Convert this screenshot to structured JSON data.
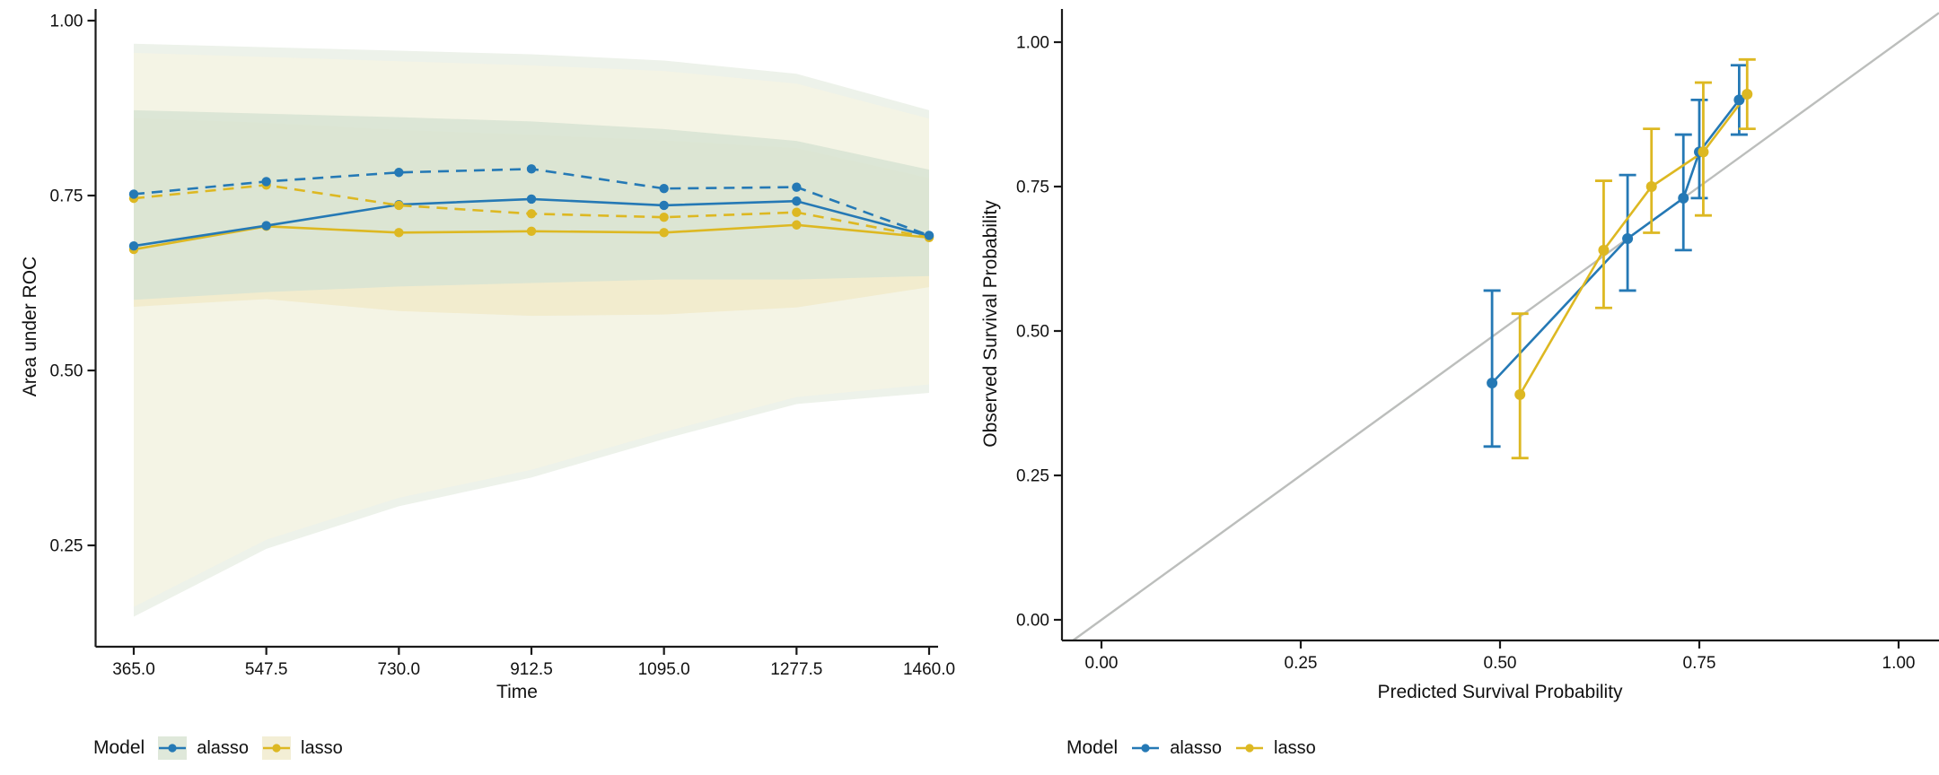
{
  "figure": {
    "background": "#ffffff"
  },
  "colors": {
    "alasso": "#2579b5",
    "lasso": "#ddb822",
    "diagonal": "#bcbebc",
    "axis": "#1a1a1a",
    "alasso_ribbon": "#d9e4d4",
    "lasso_ribbon": "#f2ecce",
    "alasso_outer_ribbon": "#edf2ea",
    "lasso_outer_ribbon": "#f7f4e2"
  },
  "legends": [
    {
      "title": "Model",
      "items": [
        {
          "label": "alasso",
          "color": "#2579b5",
          "swatch": "#dfe8da"
        },
        {
          "label": "lasso",
          "color": "#ddb822",
          "swatch": "#f3eed5"
        }
      ]
    },
    {
      "title": "Model",
      "items": [
        {
          "label": "alasso",
          "color": "#2579b5",
          "swatch": ""
        },
        {
          "label": "lasso",
          "color": "#ddb822",
          "swatch": ""
        }
      ]
    }
  ],
  "chart_data": [
    {
      "type": "line",
      "title": "",
      "xlabel": "Time",
      "ylabel": "Area under ROC",
      "grid": false,
      "legend_position": "bottom",
      "xlim": [
        313,
        1472
      ],
      "ylim": [
        0.105,
        1.019
      ],
      "x_ticks": {
        "values": [
          365.0,
          547.5,
          730.0,
          912.5,
          1095.0,
          1277.5,
          1460.0
        ],
        "labels": [
          "365.0",
          "547.5",
          "730.0",
          "912.5",
          "1095.0",
          "1277.5",
          "1460.0"
        ]
      },
      "y_ticks": {
        "values": [
          0.25,
          0.5,
          0.75,
          1.0
        ],
        "labels": [
          "0.25",
          "0.50",
          "0.75",
          "1.00"
        ]
      },
      "x": [
        365,
        547.5,
        730,
        912.5,
        1095,
        1277.5,
        1460
      ],
      "series": [
        {
          "name": "lasso-solid",
          "model": "lasso",
          "style": "solid",
          "color": "#ddb822",
          "values": [
            0.673,
            0.706,
            0.697,
            0.699,
            0.697,
            0.708,
            0.69
          ]
        },
        {
          "name": "alasso-solid",
          "model": "alasso",
          "style": "solid",
          "color": "#2579b5",
          "values": [
            0.678,
            0.707,
            0.737,
            0.745,
            0.736,
            0.742,
            0.692
          ]
        },
        {
          "name": "lasso-dashed",
          "model": "lasso",
          "style": "dashed",
          "color": "#ddb822",
          "values": [
            0.746,
            0.765,
            0.736,
            0.724,
            0.719,
            0.726,
            0.69
          ]
        },
        {
          "name": "alasso-dashed",
          "model": "alasso",
          "style": "dashed",
          "color": "#2579b5",
          "values": [
            0.752,
            0.77,
            0.783,
            0.788,
            0.76,
            0.762,
            0.693
          ]
        }
      ],
      "ribbons": [
        {
          "name": "alasso-dashed-ci",
          "fill": "#edf2ea",
          "opacity": 1,
          "lower": [
            0.148,
            0.245,
            0.306,
            0.347,
            0.402,
            0.452,
            0.468
          ],
          "upper": [
            0.967,
            0.962,
            0.957,
            0.952,
            0.943,
            0.924,
            0.872
          ]
        },
        {
          "name": "lasso-dashed-ci",
          "fill": "#f7f4e2",
          "opacity": 0.65,
          "lower": [
            0.162,
            0.258,
            0.318,
            0.358,
            0.412,
            0.462,
            0.48
          ],
          "upper": [
            0.954,
            0.948,
            0.942,
            0.936,
            0.928,
            0.91,
            0.86
          ]
        },
        {
          "name": "lasso-solid-ci",
          "fill": "#f2ecce",
          "opacity": 1,
          "lower": [
            0.591,
            0.602,
            0.585,
            0.578,
            0.58,
            0.59,
            0.619
          ],
          "upper": [
            0.861,
            0.854,
            0.844,
            0.837,
            0.829,
            0.818,
            0.775
          ]
        },
        {
          "name": "alasso-solid-ci",
          "fill": "#d9e4d4",
          "opacity": 0.9,
          "lower": [
            0.601,
            0.612,
            0.62,
            0.625,
            0.63,
            0.63,
            0.635
          ],
          "upper": [
            0.872,
            0.867,
            0.862,
            0.856,
            0.845,
            0.828,
            0.787
          ]
        }
      ]
    },
    {
      "type": "scatter",
      "title": "",
      "xlabel": "Predicted Survival Probability",
      "ylabel": "Observed Survival Probability",
      "grid": false,
      "legend_position": "bottom",
      "xlim": [
        -0.0495,
        1.0507
      ],
      "ylim": [
        -0.0357,
        1.0606
      ],
      "x_ticks": {
        "values": [
          0.0,
          0.25,
          0.5,
          0.75,
          1.0
        ],
        "labels": [
          "0.00",
          "0.25",
          "0.50",
          "0.75",
          "1.00"
        ]
      },
      "y_ticks": {
        "values": [
          0.0,
          0.25,
          0.5,
          0.75,
          1.0
        ],
        "labels": [
          "0.00",
          "0.25",
          "0.50",
          "0.75",
          "1.00"
        ]
      },
      "diagonal": {
        "show": true,
        "color": "#bcbebc"
      },
      "series": [
        {
          "name": "alasso",
          "color": "#2579b5",
          "points": [
            {
              "x": 0.49,
              "y": 0.41,
              "lo": 0.3,
              "hi": 0.57
            },
            {
              "x": 0.66,
              "y": 0.66,
              "lo": 0.57,
              "hi": 0.77
            },
            {
              "x": 0.73,
              "y": 0.73,
              "lo": 0.64,
              "hi": 0.84
            },
            {
              "x": 0.75,
              "y": 0.81,
              "lo": 0.73,
              "hi": 0.9
            },
            {
              "x": 0.8,
              "y": 0.9,
              "lo": 0.84,
              "hi": 0.96
            }
          ]
        },
        {
          "name": "lasso",
          "color": "#ddb822",
          "points": [
            {
              "x": 0.525,
              "y": 0.39,
              "lo": 0.28,
              "hi": 0.53
            },
            {
              "x": 0.63,
              "y": 0.64,
              "lo": 0.54,
              "hi": 0.76
            },
            {
              "x": 0.69,
              "y": 0.75,
              "lo": 0.67,
              "hi": 0.85
            },
            {
              "x": 0.755,
              "y": 0.81,
              "lo": 0.7,
              "hi": 0.93
            },
            {
              "x": 0.81,
              "y": 0.91,
              "lo": 0.85,
              "hi": 0.97
            }
          ]
        }
      ]
    }
  ]
}
